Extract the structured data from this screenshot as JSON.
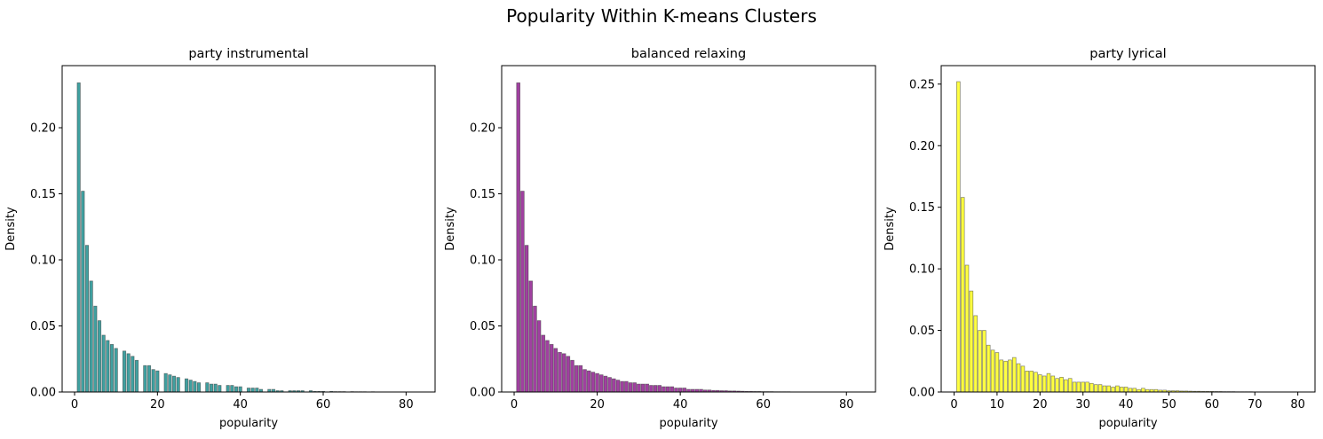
{
  "figure": {
    "suptitle": "Popularity Within K-means Clusters"
  },
  "chart_data": [
    {
      "type": "bar",
      "title": "party instrumental",
      "xlabel": "popularity",
      "ylabel": "Density",
      "color": "#008080",
      "xlim": [
        -3,
        87
      ],
      "ylim": [
        0,
        0.247
      ],
      "xticks": [
        0,
        20,
        40,
        60,
        80
      ],
      "yticks": [
        0.0,
        0.05,
        0.1,
        0.15,
        0.2
      ],
      "ytick_labels": [
        "0.00",
        "0.05",
        "0.10",
        "0.15",
        "0.20"
      ],
      "bin_width": 0.74,
      "x": [
        1,
        2,
        3,
        4,
        5,
        6,
        7,
        8,
        9,
        10,
        12,
        13,
        14,
        15,
        17,
        18,
        19,
        20,
        22,
        23,
        24,
        25,
        27,
        28,
        29,
        30,
        32,
        33,
        34,
        35,
        37,
        38,
        39,
        40,
        42,
        43,
        44,
        45,
        47,
        48,
        49,
        50,
        52,
        53,
        54,
        55,
        57,
        58,
        59,
        60,
        62,
        63,
        64,
        65,
        67,
        68,
        69,
        70,
        72,
        73,
        74,
        75,
        77,
        78,
        79,
        80,
        82
      ],
      "values": [
        0.234,
        0.152,
        0.111,
        0.084,
        0.065,
        0.054,
        0.043,
        0.039,
        0.036,
        0.033,
        0.031,
        0.029,
        0.027,
        0.024,
        0.02,
        0.02,
        0.017,
        0.016,
        0.014,
        0.013,
        0.012,
        0.011,
        0.01,
        0.009,
        0.008,
        0.007,
        0.007,
        0.006,
        0.006,
        0.005,
        0.005,
        0.005,
        0.004,
        0.004,
        0.003,
        0.003,
        0.003,
        0.002,
        0.002,
        0.002,
        0.001,
        0.001,
        0.001,
        0.001,
        0.001,
        0.001,
        0.001,
        0.0005,
        0.0005,
        0.0005,
        0.0005,
        0.0003,
        0.0003,
        0.0003,
        0.0003,
        0.0002,
        0.0002,
        0.0002,
        0.0002,
        0.0001,
        0.0001,
        0.0001,
        0.0001,
        0.0001,
        0.0001,
        0.0001,
        0.0001
      ]
    },
    {
      "type": "bar",
      "title": "balanced relaxing",
      "xlabel": "popularity",
      "ylabel": "Density",
      "color": "#800080",
      "xlim": [
        -3,
        87
      ],
      "ylim": [
        0,
        0.247
      ],
      "xticks": [
        0,
        20,
        40,
        60,
        80
      ],
      "yticks": [
        0.0,
        0.05,
        0.1,
        0.15,
        0.2
      ],
      "ytick_labels": [
        "0.00",
        "0.05",
        "0.10",
        "0.15",
        "0.20"
      ],
      "bin_width": 0.82,
      "x": [
        1,
        2,
        3,
        4,
        5,
        6,
        7,
        8,
        9,
        10,
        11,
        12,
        13,
        14,
        15,
        16,
        17,
        18,
        19,
        20,
        21,
        22,
        23,
        24,
        25,
        26,
        27,
        28,
        29,
        30,
        31,
        32,
        33,
        34,
        35,
        36,
        37,
        38,
        39,
        40,
        41,
        42,
        43,
        44,
        45,
        46,
        47,
        48,
        49,
        50,
        51,
        52,
        53,
        54,
        55,
        56,
        57,
        58,
        59,
        60,
        61,
        62,
        63,
        64,
        65,
        66,
        67,
        68,
        69,
        70,
        71,
        72,
        73,
        74,
        75,
        76,
        77,
        78,
        79,
        80,
        81,
        82
      ],
      "values": [
        0.234,
        0.152,
        0.111,
        0.084,
        0.065,
        0.054,
        0.043,
        0.039,
        0.036,
        0.033,
        0.03,
        0.029,
        0.027,
        0.024,
        0.02,
        0.02,
        0.017,
        0.016,
        0.015,
        0.014,
        0.013,
        0.012,
        0.011,
        0.01,
        0.009,
        0.008,
        0.008,
        0.007,
        0.007,
        0.006,
        0.006,
        0.006,
        0.005,
        0.005,
        0.005,
        0.004,
        0.004,
        0.004,
        0.003,
        0.003,
        0.003,
        0.002,
        0.002,
        0.002,
        0.002,
        0.0015,
        0.0015,
        0.0012,
        0.0012,
        0.001,
        0.001,
        0.0008,
        0.0008,
        0.0007,
        0.0006,
        0.0005,
        0.0005,
        0.0004,
        0.0004,
        0.0003,
        0.0003,
        0.0003,
        0.0002,
        0.0002,
        0.0002,
        0.0002,
        0.0001,
        0.0001,
        0.0001,
        0.0001,
        0.0001,
        0.0001,
        0.0001,
        0.0001,
        0.0001,
        0.0001,
        0.0001,
        0.0001,
        0.0001,
        0.0001,
        0.0001,
        0.0001
      ]
    },
    {
      "type": "bar",
      "title": "party lyrical",
      "xlabel": "popularity",
      "ylabel": "Density",
      "color": "#ffff00",
      "xlim": [
        -3,
        84
      ],
      "ylim": [
        0,
        0.265
      ],
      "xticks": [
        0,
        10,
        20,
        30,
        40,
        50,
        60,
        70,
        80
      ],
      "yticks": [
        0.0,
        0.05,
        0.1,
        0.15,
        0.2,
        0.25
      ],
      "ytick_labels": [
        "0.00",
        "0.05",
        "0.10",
        "0.15",
        "0.20",
        "0.25"
      ],
      "bin_width": 0.8,
      "x": [
        1,
        2,
        3,
        4,
        5,
        6,
        7,
        8,
        9,
        10,
        11,
        12,
        13,
        14,
        15,
        16,
        17,
        18,
        19,
        20,
        21,
        22,
        23,
        24,
        25,
        26,
        27,
        28,
        29,
        30,
        31,
        32,
        33,
        34,
        35,
        36,
        37,
        38,
        39,
        40,
        41,
        42,
        43,
        44,
        45,
        46,
        47,
        48,
        49,
        50,
        51,
        52,
        53,
        54,
        55,
        56,
        57,
        58,
        59,
        60,
        61,
        62,
        63,
        64,
        65,
        66,
        67,
        68,
        69,
        70,
        71,
        72,
        73,
        74,
        75,
        76,
        77,
        78,
        79,
        80
      ],
      "values": [
        0.252,
        0.158,
        0.103,
        0.082,
        0.062,
        0.05,
        0.05,
        0.038,
        0.034,
        0.032,
        0.026,
        0.025,
        0.026,
        0.028,
        0.023,
        0.021,
        0.017,
        0.017,
        0.016,
        0.014,
        0.013,
        0.015,
        0.013,
        0.011,
        0.012,
        0.01,
        0.011,
        0.008,
        0.008,
        0.008,
        0.008,
        0.007,
        0.006,
        0.006,
        0.005,
        0.005,
        0.004,
        0.005,
        0.004,
        0.004,
        0.003,
        0.003,
        0.002,
        0.003,
        0.002,
        0.002,
        0.002,
        0.0015,
        0.0015,
        0.001,
        0.001,
        0.001,
        0.0008,
        0.0008,
        0.0007,
        0.0006,
        0.0006,
        0.0005,
        0.0005,
        0.0005,
        0.0004,
        0.0004,
        0.0003,
        0.0003,
        0.0003,
        0.0002,
        0.0002,
        0.0002,
        0.0002,
        0.0001,
        0.0001,
        0.0001,
        0.0001,
        0.0001,
        0.0001,
        0.0001,
        0.0001,
        0.0001,
        0.0001,
        0.0001
      ]
    }
  ]
}
